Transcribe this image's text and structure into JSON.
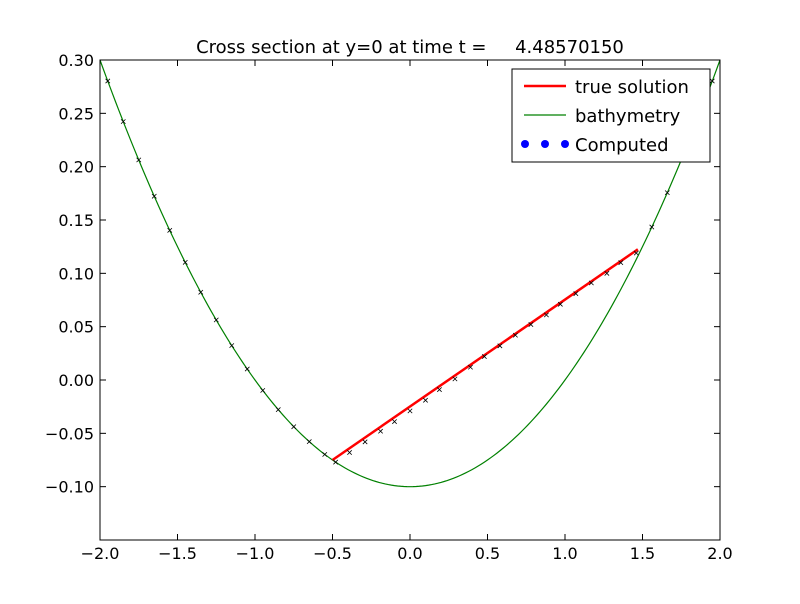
{
  "chart_data": {
    "type": "line",
    "title": "Cross section at y=0 at time t =     4.48570150",
    "xlabel": "",
    "ylabel": "",
    "xlim": [
      -2.0,
      2.0
    ],
    "ylim": [
      -0.15,
      0.3
    ],
    "grid": false,
    "legend_position": "top-right",
    "x_ticks": [
      {
        "value": -2.0,
        "label": "−2.0"
      },
      {
        "value": -1.5,
        "label": "−1.5"
      },
      {
        "value": -1.0,
        "label": "−1.0"
      },
      {
        "value": -0.5,
        "label": "−0.5"
      },
      {
        "value": 0.0,
        "label": "0.0"
      },
      {
        "value": 0.5,
        "label": "0.5"
      },
      {
        "value": 1.0,
        "label": "1.0"
      },
      {
        "value": 1.5,
        "label": "1.5"
      },
      {
        "value": 2.0,
        "label": "2.0"
      }
    ],
    "y_ticks": [
      {
        "value": -0.1,
        "label": "−0.10"
      },
      {
        "value": -0.05,
        "label": "−0.05"
      },
      {
        "value": 0.0,
        "label": "0.00"
      },
      {
        "value": 0.05,
        "label": "0.05"
      },
      {
        "value": 0.1,
        "label": "0.10"
      },
      {
        "value": 0.15,
        "label": "0.15"
      },
      {
        "value": 0.2,
        "label": "0.20"
      },
      {
        "value": 0.25,
        "label": "0.25"
      },
      {
        "value": 0.3,
        "label": "0.30"
      }
    ],
    "series": [
      {
        "name": "true solution",
        "kind": "line",
        "color": "#ff0000",
        "x": [
          -0.5,
          1.47
        ],
        "y": [
          -0.075,
          0.1225
        ]
      },
      {
        "name": "bathymetry",
        "kind": "curve",
        "color": "#008000",
        "function": "0.1*x^2 - 0.1",
        "x_range": [
          -2.0,
          2.0
        ]
      },
      {
        "name": "Computed",
        "kind": "markers",
        "color": "#0000ff",
        "x": [
          -1.95,
          -1.85,
          -1.75,
          -1.65,
          -1.55,
          -1.45,
          -1.35,
          -1.25,
          -1.15,
          -1.05,
          -0.95,
          -0.85,
          -0.75,
          -0.65,
          -0.55,
          -0.48,
          -0.39,
          -0.29,
          -0.19,
          -0.1,
          0.0,
          0.1,
          0.19,
          0.29,
          0.39,
          0.48,
          0.58,
          0.68,
          0.78,
          0.88,
          0.97,
          1.07,
          1.17,
          1.27,
          1.36,
          1.46,
          1.56,
          1.66,
          1.75,
          1.85,
          1.95
        ],
        "y": [
          0.2803,
          0.2423,
          0.2063,
          0.1723,
          0.1403,
          0.1103,
          0.0823,
          0.0563,
          0.0323,
          0.0103,
          -0.0098,
          -0.0278,
          -0.0438,
          -0.0578,
          -0.0698,
          -0.077,
          -0.068,
          -0.058,
          -0.048,
          -0.039,
          -0.029,
          -0.019,
          -0.009,
          0.001,
          0.012,
          0.022,
          0.032,
          0.042,
          0.052,
          0.061,
          0.071,
          0.081,
          0.091,
          0.1,
          0.11,
          0.119,
          0.1434,
          0.1756,
          0.2063,
          0.2423,
          0.2803
        ],
        "marker_glyph": "x",
        "marker_color": "#000000"
      }
    ]
  }
}
